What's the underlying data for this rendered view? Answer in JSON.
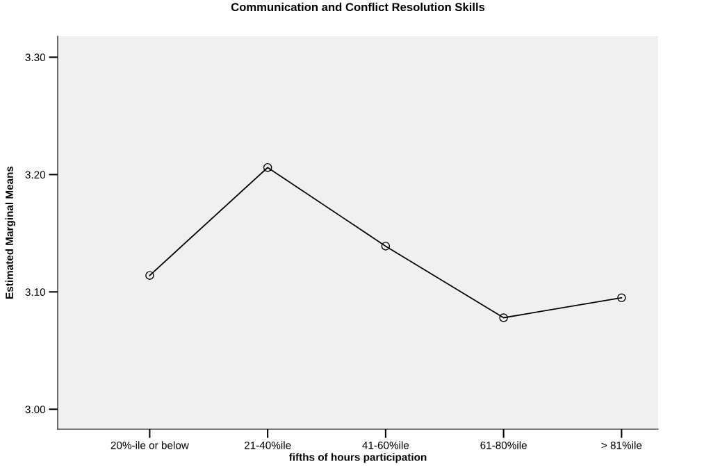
{
  "chart_data": {
    "type": "line",
    "title": "Communication and Conflict Resolution Skills",
    "xlabel": "fifths of hours participation",
    "ylabel": "Estimated Marginal Means",
    "categories": [
      "20%-ile or below",
      "21-40%ile",
      "41-60%ile",
      "61-80%ile",
      "> 81%ile"
    ],
    "series": [
      {
        "color": "#000000",
        "values": [
          3.114,
          3.206,
          3.139,
          3.078,
          3.095
        ]
      }
    ],
    "ylim": [
      2.983,
      3.318
    ],
    "yticks": [
      {
        "value": 3.0,
        "label": "3.00"
      },
      {
        "value": 3.1,
        "label": "3.10"
      },
      {
        "value": 3.2,
        "label": "3.20"
      },
      {
        "value": 3.3,
        "label": "3.30"
      }
    ],
    "marker": "circle",
    "line_style": "solid",
    "grid": false,
    "legend": false
  }
}
